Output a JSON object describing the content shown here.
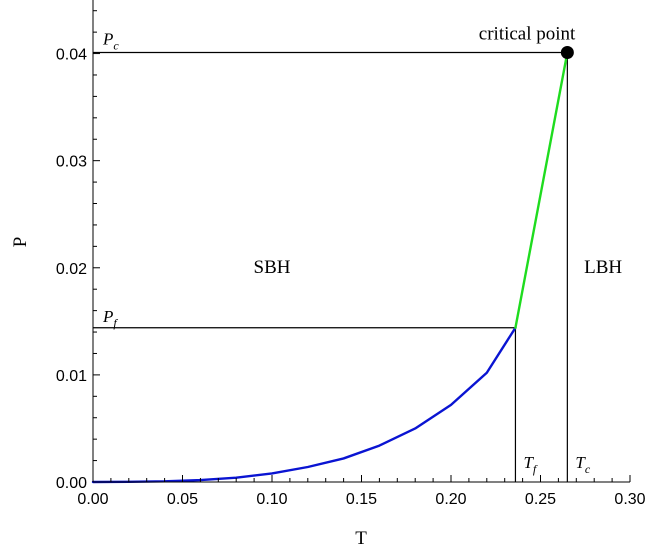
{
  "chart_data": {
    "type": "line",
    "xlabel": "T",
    "ylabel": "P",
    "xlim": [
      0.0,
      0.3
    ],
    "ylim": [
      0.0,
      0.045
    ],
    "xticks": [
      0.0,
      0.05,
      0.1,
      0.15,
      0.2,
      0.25,
      0.3
    ],
    "xtick_labels": [
      "0.00",
      "0.05",
      "0.10",
      "0.15",
      "0.20",
      "0.25",
      "0.30"
    ],
    "yticks": [
      0.0,
      0.01,
      0.02,
      0.03,
      0.04
    ],
    "ytick_labels": [
      "0.00",
      "0.01",
      "0.02",
      "0.03",
      "0.04"
    ],
    "grid": false,
    "series": [
      {
        "color": "#0a14d2",
        "x": [
          0.0,
          0.02,
          0.04,
          0.06,
          0.08,
          0.1,
          0.12,
          0.14,
          0.16,
          0.18,
          0.2,
          0.22,
          0.236
        ],
        "y": [
          0.0,
          2e-05,
          6e-05,
          0.00018,
          0.0004,
          0.0008,
          0.0014,
          0.0022,
          0.0034,
          0.005,
          0.0072,
          0.0102,
          0.0144
        ]
      },
      {
        "color": "#1fdc1f",
        "x": [
          0.236,
          0.265
        ],
        "y": [
          0.0144,
          0.0401
        ]
      }
    ],
    "reference_lines": {
      "Pc": 0.0401,
      "Pf": 0.0144,
      "Tf": 0.236,
      "Tc": 0.265,
      "color": "#000000"
    },
    "critical_point": {
      "x": 0.265,
      "y": 0.0401,
      "label": "critical point"
    },
    "annotations": [
      {
        "text": "SBH",
        "x": 0.1,
        "y": 0.0195
      },
      {
        "text": "LBH",
        "x": 0.285,
        "y": 0.0195
      }
    ],
    "ref_labels": {
      "Pc": {
        "base": "P",
        "sub": "c"
      },
      "Pf": {
        "base": "P",
        "sub": "f"
      },
      "Tf": {
        "base": "T",
        "sub": "f"
      },
      "Tc": {
        "base": "T",
        "sub": "c"
      }
    }
  }
}
